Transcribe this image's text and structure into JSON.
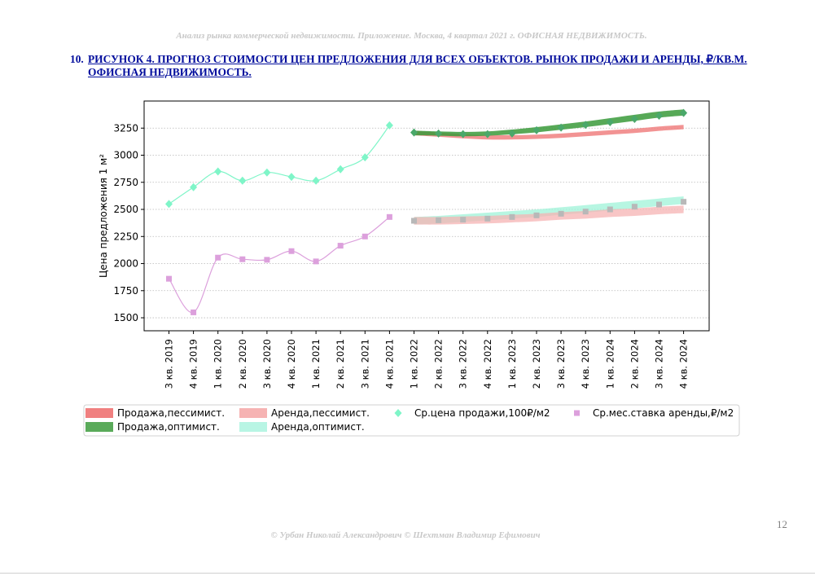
{
  "header": "Анализ рынка коммерческой недвижимости. Приложение.  Москва,  4 квартал 2021 г.  ОФИСНАЯ НЕДВИЖИМОСТЬ.",
  "title": {
    "number": "10.",
    "text": "РИСУНОК 4. ПРОГНОЗ СТОИМОСТИ ЦЕН ПРЕДЛОЖЕНИЯ ДЛЯ ВСЕХ ОБЪЕКТОВ. РЫНОК ПРОДАЖИ И АРЕНДЫ, ₽/КВ.М. ОФИСНАЯ НЕДВИЖИМОСТЬ."
  },
  "page_number": "12",
  "footer": "© Урбан Николай Александрович   © Шехтман Владимир Ефимович",
  "chart_data": {
    "type": "line",
    "ylabel": "Цена предложения 1 м²",
    "xlabel": "",
    "ylim": [
      1380,
      3500
    ],
    "yticks": [
      1500,
      1750,
      2000,
      2250,
      2500,
      2750,
      3000,
      3250
    ],
    "grid": "horizontal dotted",
    "categories": [
      "3 кв. 2019",
      "4 кв. 2019",
      "1 кв. 2020",
      "2 кв. 2020",
      "3 кв. 2020",
      "4 кв. 2020",
      "1 кв. 2021",
      "2 кв. 2021",
      "3 кв. 2021",
      "4 кв. 2021",
      "1 кв. 2022",
      "2 кв. 2022",
      "3 кв. 2022",
      "4 кв. 2022",
      "1 кв. 2023",
      "2 кв. 2023",
      "3 кв. 2023",
      "4 кв. 2023",
      "1 кв. 2024",
      "2 кв. 2024",
      "3 кв. 2024",
      "4 кв. 2024"
    ],
    "series": [
      {
        "name": "Ср.цена продажи,100₽/м2",
        "marker": "diamond",
        "color": "#7ff5c8",
        "values": [
          2550,
          2705,
          2850,
          2765,
          2840,
          2800,
          2765,
          2870,
          2980,
          3275,
          3210,
          3200,
          3195,
          3195,
          3200,
          3230,
          3255,
          3280,
          3305,
          3335,
          3365,
          3390
        ]
      },
      {
        "name": "Ср.мес.ставка аренды,₽/м2",
        "marker": "square",
        "color": "#dca0dc",
        "values": [
          1860,
          1550,
          2055,
          2040,
          2035,
          2115,
          2020,
          2165,
          2250,
          2430,
          2395,
          2400,
          2405,
          2415,
          2430,
          2445,
          2460,
          2480,
          2500,
          2525,
          2545,
          2570
        ]
      }
    ],
    "bands": [
      {
        "name": "Продажа,пессимист.",
        "color": "#f08080",
        "edge": "#e05050",
        "center": [
          3205,
          3190,
          3175,
          3165,
          3165,
          3170,
          3180,
          3195,
          3210,
          3225,
          3245,
          3260
        ],
        "half": [
          22,
          20,
          20,
          20,
          20,
          20,
          20,
          20,
          20,
          20,
          20,
          20
        ]
      },
      {
        "name": "Продажа,оптимист.",
        "color": "#3a9a3a",
        "edge": "#2d7d2d",
        "center": [
          3205,
          3200,
          3195,
          3200,
          3215,
          3235,
          3260,
          3285,
          3315,
          3345,
          3375,
          3395
        ],
        "half": [
          22,
          20,
          20,
          20,
          22,
          24,
          25,
          26,
          27,
          28,
          28,
          28
        ]
      },
      {
        "name": "Аренда,пессимист.",
        "color": "#f6b3b3",
        "edge": "#f6b3b3",
        "center": [
          2395,
          2395,
          2400,
          2405,
          2415,
          2425,
          2440,
          2450,
          2465,
          2475,
          2490,
          2500
        ],
        "half": [
          35,
          35,
          35,
          35,
          35,
          35,
          35,
          35,
          35,
          35,
          35,
          35
        ]
      },
      {
        "name": "Аренда,оптимист.",
        "color": "#9ff3d8",
        "edge": "#9ff3d8",
        "center": [
          2395,
          2405,
          2420,
          2435,
          2450,
          2465,
          2485,
          2505,
          2525,
          2545,
          2565,
          2585
        ],
        "half": [
          35,
          35,
          35,
          35,
          35,
          35,
          35,
          35,
          35,
          35,
          35,
          35
        ]
      }
    ],
    "forecast_overlay": {
      "note": "grey markers drawn in forecast zone",
      "sale_color": "#4aa86a",
      "rent_color": "#b8b8b8"
    },
    "legend": [
      {
        "label": "Продажа,пессимист.",
        "kind": "band",
        "color": "#f08080"
      },
      {
        "label": "Аренда,пессимист.",
        "kind": "band",
        "color": "#f6b3b3"
      },
      {
        "label": "Ср.цена продажи,100₽/м2",
        "kind": "diamond",
        "color": "#7ff5c8"
      },
      {
        "label": "Ср.мес.ставка аренды,₽/м2",
        "kind": "square",
        "color": "#dca0dc"
      },
      {
        "label": "Продажа,оптимист.",
        "kind": "band",
        "color": "#5aaa5a"
      },
      {
        "label": "Аренда,оптимист.",
        "kind": "band",
        "color": "#b8f5e4"
      }
    ],
    "legend_placement": "bottom"
  }
}
